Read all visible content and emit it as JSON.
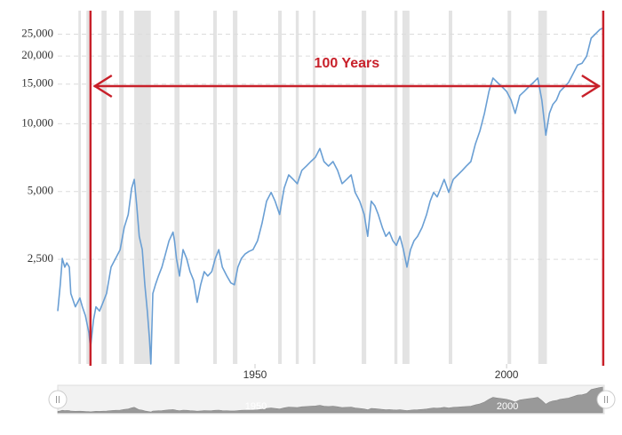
{
  "chart_data": {
    "type": "line",
    "log_y": true,
    "grid": true,
    "color": "#6a9fd4",
    "annotation": {
      "text": "100 Years",
      "color": "#c8202a",
      "span": [
        1917.3,
        2019.2
      ]
    },
    "xlim": [
      1910.8,
      2019.4
    ],
    "xticks": [
      1950,
      2000
    ],
    "ylim": [
      857,
      31800
    ],
    "yticks": [
      {
        "value": 2500,
        "label": "2,500"
      },
      {
        "value": 5000,
        "label": "5,000"
      },
      {
        "value": 10000,
        "label": "10,000"
      },
      {
        "value": 15000,
        "label": "15,000"
      },
      {
        "value": 20000,
        "label": "20,000"
      },
      {
        "value": 25000,
        "label": "25,000"
      }
    ],
    "shaded_periods": [
      [
        1914.9,
        1915.4
      ],
      [
        1916.5,
        1917.0
      ],
      [
        1919.5,
        1920.5
      ],
      [
        1923.0,
        1923.9
      ],
      [
        1926.0,
        1929.3
      ],
      [
        1934.0,
        1935.0
      ],
      [
        1941.7,
        1942.4
      ],
      [
        1945.6,
        1946.5
      ],
      [
        1954.6,
        1955.3
      ],
      [
        1958.1,
        1958.7
      ],
      [
        1961.5,
        1962.0
      ],
      [
        1971.2,
        1972.1
      ],
      [
        1977.7,
        1978.3
      ],
      [
        1979.3,
        1980.7
      ],
      [
        1988.5,
        1989.2
      ],
      [
        2000.2,
        2000.9
      ],
      [
        2006.3,
        2008.0
      ]
    ],
    "x": [
      1910.8,
      1911.3,
      1911.7,
      1912.2,
      1912.6,
      1913.1,
      1913.4,
      1914.3,
      1915.2,
      1915.7,
      1916.3,
      1917.0,
      1917.3,
      1917.9,
      1918.4,
      1919.1,
      1919.8,
      1920.5,
      1921.4,
      1922.3,
      1923.2,
      1924.0,
      1924.8,
      1925.5,
      1926.0,
      1926.5,
      1927.0,
      1927.6,
      1928.1,
      1928.6,
      1929.0,
      1929.3,
      1929.7,
      1930.2,
      1930.8,
      1931.5,
      1932.2,
      1932.9,
      1933.7,
      1934.0,
      1934.4,
      1935.0,
      1935.7,
      1936.4,
      1937.1,
      1937.8,
      1938.5,
      1939.2,
      1939.9,
      1940.6,
      1941.4,
      1942.1,
      1942.8,
      1943.5,
      1944.4,
      1945.2,
      1945.9,
      1946.6,
      1947.3,
      1948.0,
      1948.8,
      1949.6,
      1950.5,
      1951.4,
      1952.3,
      1953.2,
      1954.0,
      1954.9,
      1955.8,
      1956.7,
      1957.6,
      1958.4,
      1959.3,
      1960.2,
      1961.1,
      1962.0,
      1962.9,
      1963.7,
      1964.6,
      1965.5,
      1966.4,
      1967.3,
      1968.2,
      1969.1,
      1969.9,
      1970.8,
      1971.7,
      1972.4,
      1973.1,
      1973.8,
      1974.5,
      1975.3,
      1976.0,
      1976.7,
      1977.4,
      1978.1,
      1978.8,
      1979.5,
      1980.2,
      1980.9,
      1981.6,
      1982.3,
      1983.2,
      1984.1,
      1984.8,
      1985.5,
      1986.2,
      1986.9,
      1987.6,
      1988.5,
      1989.4,
      1990.3,
      1991.2,
      1992.0,
      1992.9,
      1993.8,
      1994.7,
      1995.6,
      1996.5,
      1997.3,
      1998.2,
      1999.1,
      2000.0,
      2000.9,
      2001.7,
      2002.6,
      2003.5,
      2004.4,
      2005.3,
      2006.2,
      2007.0,
      2007.8,
      2008.5,
      2009.2,
      2009.9,
      2010.6,
      2011.5,
      2012.3,
      2013.2,
      2014.1,
      2015.0,
      2015.9,
      2016.8,
      2017.6,
      2018.5,
      2019.1
    ],
    "values": [
      1472,
      1927,
      2523,
      2307,
      2410,
      2307,
      1762,
      1538,
      1683,
      1538,
      1406,
      1175,
      1007,
      1343,
      1538,
      1472,
      1610,
      1762,
      2307,
      2523,
      2761,
      3459,
      3954,
      5176,
      5662,
      4325,
      3162,
      2761,
      1927,
      1472,
      1122,
      857,
      1762,
      1927,
      2108,
      2307,
      2637,
      3020,
      3304,
      3020,
      2523,
      2108,
      2761,
      2523,
      2203,
      2015,
      1610,
      1927,
      2203,
      2108,
      2203,
      2523,
      2761,
      2307,
      2108,
      1963,
      1927,
      2307,
      2523,
      2637,
      2710,
      2761,
      3020,
      3614,
      4529,
      4955,
      4529,
      3954,
      5176,
      5929,
      5662,
      5420,
      6209,
      6486,
      6792,
      7096,
      7762,
      6792,
      6486,
      6792,
      6209,
      5420,
      5662,
      5929,
      4955,
      4529,
      3954,
      3162,
      4529,
      4325,
      3954,
      3459,
      3162,
      3304,
      3020,
      2884,
      3162,
      2761,
      2307,
      2761,
      3020,
      3162,
      3459,
      3954,
      4529,
      4955,
      4732,
      5176,
      5662,
      4955,
      5662,
      5929,
      6209,
      6486,
      6792,
      8128,
      9290,
      11117,
      13930,
      15960,
      15240,
      14590,
      13930,
      12735,
      11117,
      13340,
      13930,
      14590,
      15240,
      15960,
      12735,
      8892,
      11117,
      12190,
      12735,
      13930,
      14590,
      15240,
      16670,
      18240,
      18580,
      19950,
      24000,
      25000,
      26180,
      26600
    ]
  }
}
